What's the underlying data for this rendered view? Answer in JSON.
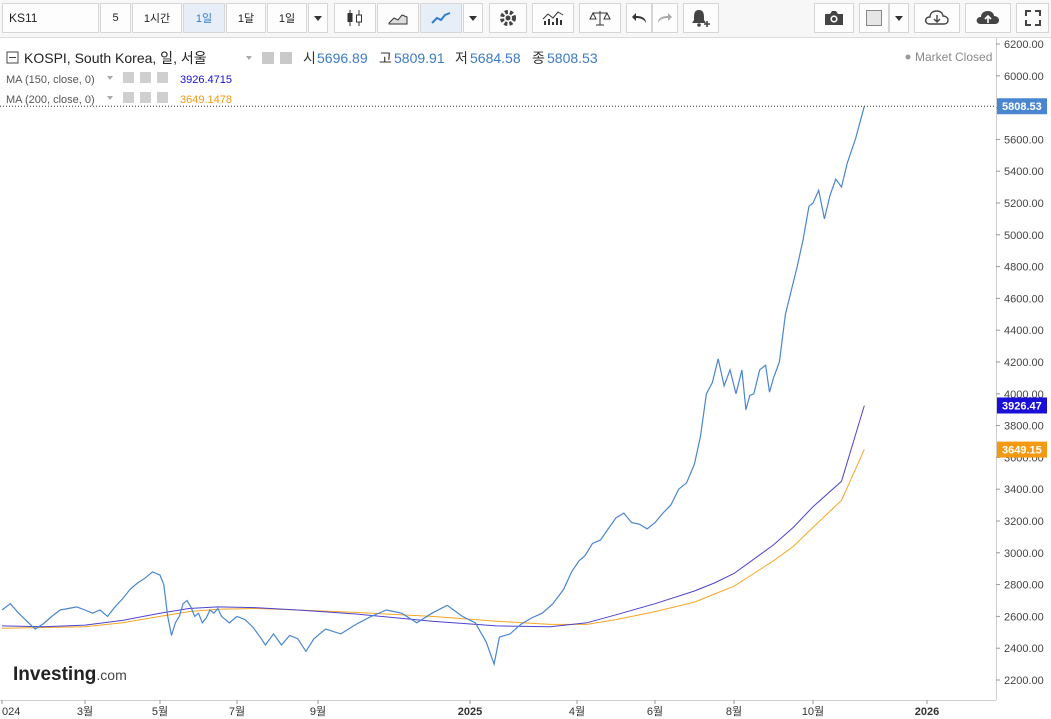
{
  "toolbar": {
    "symbol": "KS11",
    "count": "5",
    "intervals": [
      "1시간",
      "1일",
      "1달",
      "1일"
    ],
    "icons": [
      "candlestick-icon",
      "area-chart-icon",
      "line-chart-icon",
      "dropdown-icon",
      "gear-icon",
      "indicators-icon",
      "scale-icon",
      "undo-icon",
      "redo-icon",
      "alert-icon",
      "camera-icon",
      "color-swatch-icon",
      "dropdown-icon",
      "cloud-download-icon",
      "cloud-upload-icon",
      "fullscreen-icon"
    ]
  },
  "legend": {
    "instrument": "KOSPI, South Korea, 일, 서울",
    "open_label": "시",
    "open": "5696.89",
    "high_label": "고",
    "high": "5809.91",
    "low_label": "저",
    "low": "5684.58",
    "close_label": "종",
    "close": "5808.53",
    "status": "Market Closed",
    "ma1_label": "MA (150, close, 0)",
    "ma1_value": "3926.4715",
    "ma2_label": "MA (200, close, 0)",
    "ma2_value": "3649.1478"
  },
  "price_badges": {
    "last": "5808.53",
    "ma1": "3926.47",
    "ma2": "3649.15"
  },
  "watermark": {
    "brand": "Investing",
    "suffix": ".com"
  },
  "chart_data": {
    "type": "line",
    "x_ticks": [
      "024",
      "3월",
      "5월",
      "7월",
      "9월",
      "2025",
      "4월",
      "6월",
      "8월",
      "10월",
      "2026"
    ],
    "y_ticks": [
      2200,
      2400,
      2600,
      2800,
      3000,
      3200,
      3400,
      3600,
      3800,
      4000,
      4200,
      4400,
      4600,
      4800,
      5000,
      5200,
      5400,
      5600,
      5800,
      6000,
      6200
    ],
    "ylim": [
      2130,
      6210
    ],
    "colors": {
      "price": "#4a86d0",
      "ma150": "#4d43cf",
      "ma200": "#f5a623",
      "last_badge": "#4a86d0",
      "ma150_badge": "#1a0fd6",
      "ma200_badge": "#f39a12"
    },
    "series": [
      {
        "name": "KOSPI",
        "points": [
          [
            0,
            2640
          ],
          [
            0.4,
            2680
          ],
          [
            0.8,
            2620
          ],
          [
            1.2,
            2570
          ],
          [
            1.6,
            2520
          ],
          [
            2,
            2555
          ],
          [
            2.4,
            2600
          ],
          [
            2.8,
            2640
          ],
          [
            3.2,
            2650
          ],
          [
            3.6,
            2660
          ],
          [
            4.0,
            2640
          ],
          [
            4.4,
            2620
          ],
          [
            4.8,
            2640
          ],
          [
            5.2,
            2600
          ],
          [
            5.6,
            2660
          ],
          [
            6.0,
            2710
          ],
          [
            6.4,
            2770
          ],
          [
            6.8,
            2810
          ],
          [
            7.2,
            2840
          ],
          [
            7.6,
            2880
          ],
          [
            8.0,
            2860
          ],
          [
            8.2,
            2800
          ],
          [
            8.4,
            2600
          ],
          [
            8.6,
            2480
          ],
          [
            8.8,
            2560
          ],
          [
            9.0,
            2600
          ],
          [
            9.2,
            2680
          ],
          [
            9.4,
            2700
          ],
          [
            9.6,
            2660
          ],
          [
            9.8,
            2600
          ],
          [
            10.0,
            2620
          ],
          [
            10.2,
            2560
          ],
          [
            10.4,
            2590
          ],
          [
            10.6,
            2640
          ],
          [
            10.8,
            2620
          ],
          [
            11.0,
            2650
          ],
          [
            11.2,
            2600
          ],
          [
            11.6,
            2560
          ],
          [
            12.0,
            2600
          ],
          [
            12.4,
            2580
          ],
          [
            12.8,
            2530
          ],
          [
            13.2,
            2460
          ],
          [
            13.4,
            2420
          ],
          [
            13.8,
            2490
          ],
          [
            14.2,
            2420
          ],
          [
            14.6,
            2480
          ],
          [
            15.0,
            2460
          ],
          [
            15.4,
            2380
          ],
          [
            15.8,
            2460
          ],
          [
            16.2,
            2520
          ],
          [
            16.6,
            2490
          ],
          [
            17.0,
            2550
          ],
          [
            17.4,
            2600
          ],
          [
            17.8,
            2640
          ],
          [
            18.2,
            2620
          ],
          [
            18.6,
            2560
          ],
          [
            19.0,
            2620
          ],
          [
            19.4,
            2670
          ],
          [
            19.8,
            2600
          ],
          [
            20.2,
            2560
          ],
          [
            20.6,
            2440
          ],
          [
            20.9,
            2300
          ],
          [
            21.1,
            2470
          ],
          [
            21.5,
            2490
          ],
          [
            21.9,
            2550
          ],
          [
            22.3,
            2590
          ],
          [
            22.7,
            2620
          ],
          [
            23.1,
            2680
          ],
          [
            23.5,
            2770
          ],
          [
            23.8,
            2880
          ],
          [
            24.1,
            2950
          ],
          [
            24.4,
            2980
          ],
          [
            24.8,
            3060
          ],
          [
            25.2,
            3080
          ],
          [
            25.6,
            3150
          ],
          [
            26.0,
            3220
          ],
          [
            26.4,
            3250
          ],
          [
            26.8,
            3190
          ],
          [
            27.2,
            3180
          ],
          [
            27.6,
            3150
          ],
          [
            28.0,
            3190
          ],
          [
            28.4,
            3250
          ],
          [
            28.8,
            3300
          ],
          [
            29.2,
            3400
          ],
          [
            29.6,
            3440
          ],
          [
            30.0,
            3560
          ],
          [
            30.3,
            3730
          ],
          [
            30.6,
            4000
          ],
          [
            30.9,
            4070
          ],
          [
            31.2,
            4220
          ],
          [
            31.5,
            4050
          ],
          [
            31.8,
            4150
          ],
          [
            32.1,
            4000
          ],
          [
            32.4,
            4150
          ],
          [
            32.6,
            3900
          ],
          [
            32.8,
            3990
          ],
          [
            33.0,
            4000
          ],
          [
            33.3,
            4150
          ],
          [
            33.6,
            4180
          ],
          [
            33.8,
            4010
          ],
          [
            34.0,
            4100
          ],
          [
            34.3,
            4200
          ],
          [
            34.6,
            4500
          ],
          [
            34.9,
            4650
          ],
          [
            35.2,
            4800
          ],
          [
            35.5,
            4970
          ],
          [
            35.8,
            5180
          ],
          [
            36.0,
            5200
          ],
          [
            36.2,
            5280
          ],
          [
            36.4,
            5100
          ],
          [
            36.6,
            5250
          ],
          [
            36.8,
            5350
          ],
          [
            37.0,
            5300
          ],
          [
            37.2,
            5450
          ],
          [
            37.5,
            5610
          ],
          [
            37.8,
            5808
          ]
        ]
      },
      {
        "name": "MA (150, close, 0)",
        "points": [
          [
            0,
            2540
          ],
          [
            2,
            2535
          ],
          [
            4,
            2545
          ],
          [
            6,
            2575
          ],
          [
            8,
            2620
          ],
          [
            9.5,
            2650
          ],
          [
            11,
            2660
          ],
          [
            13,
            2655
          ],
          [
            15,
            2640
          ],
          [
            17,
            2615
          ],
          [
            19,
            2570
          ],
          [
            21,
            2540
          ],
          [
            23,
            2535
          ],
          [
            24.5,
            2560
          ],
          [
            26,
            2610
          ],
          [
            28,
            2680
          ],
          [
            30,
            2760
          ],
          [
            31,
            2810
          ],
          [
            32,
            2870
          ],
          [
            33,
            2960
          ],
          [
            34,
            3050
          ],
          [
            35,
            3160
          ],
          [
            36,
            3290
          ],
          [
            37,
            3450
          ],
          [
            37.8,
            3926
          ]
        ]
      },
      {
        "name": "MA (200, close, 0)",
        "points": [
          [
            0,
            2525
          ],
          [
            2,
            2530
          ],
          [
            4,
            2535
          ],
          [
            6,
            2560
          ],
          [
            8,
            2600
          ],
          [
            9.5,
            2630
          ],
          [
            11,
            2645
          ],
          [
            13,
            2650
          ],
          [
            15,
            2640
          ],
          [
            17,
            2625
          ],
          [
            19,
            2600
          ],
          [
            21,
            2570
          ],
          [
            23,
            2550
          ],
          [
            24.5,
            2550
          ],
          [
            26,
            2580
          ],
          [
            28,
            2630
          ],
          [
            30,
            2690
          ],
          [
            31,
            2740
          ],
          [
            32,
            2790
          ],
          [
            33,
            2870
          ],
          [
            34,
            2950
          ],
          [
            35,
            3040
          ],
          [
            36,
            3160
          ],
          [
            37,
            3330
          ],
          [
            37.8,
            3649
          ]
        ]
      }
    ]
  }
}
